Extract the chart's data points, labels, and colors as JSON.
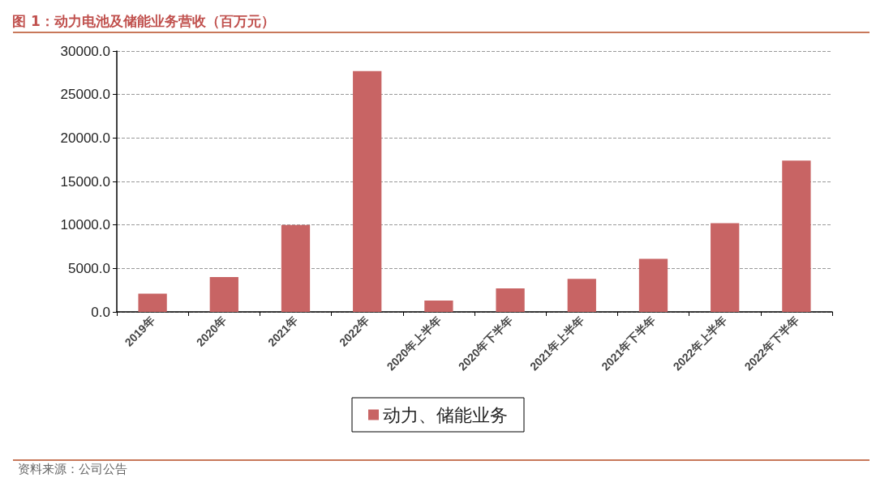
{
  "chart_data": {
    "type": "bar",
    "title": "图 1：动力电池及储能业务营收（百万元）",
    "categories": [
      "2019年",
      "2020年",
      "2021年",
      "2022年",
      "2020年上半年",
      "2020年下半年",
      "2021年上半年",
      "2021年下半年",
      "2022年上半年",
      "2022年下半年"
    ],
    "series": [
      {
        "name": "动力、储能业务",
        "color": "#c86464",
        "values": [
          2100,
          4000,
          10000,
          27700,
          1300,
          2700,
          3800,
          6100,
          10200,
          17400
        ]
      }
    ],
    "ylim": [
      0,
      30000
    ],
    "yticks": [
      {
        "value": 0,
        "label": "0.0"
      },
      {
        "value": 5000,
        "label": "5000.0"
      },
      {
        "value": 10000,
        "label": "10000.0"
      },
      {
        "value": 15000,
        "label": "15000.0"
      },
      {
        "value": 20000,
        "label": "20000.0"
      },
      {
        "value": 25000,
        "label": "25000.0"
      },
      {
        "value": 30000,
        "label": "30000.0"
      }
    ],
    "grid": "y",
    "legend": "bottom",
    "annotations": [
      "资料来源：公司公告"
    ]
  }
}
